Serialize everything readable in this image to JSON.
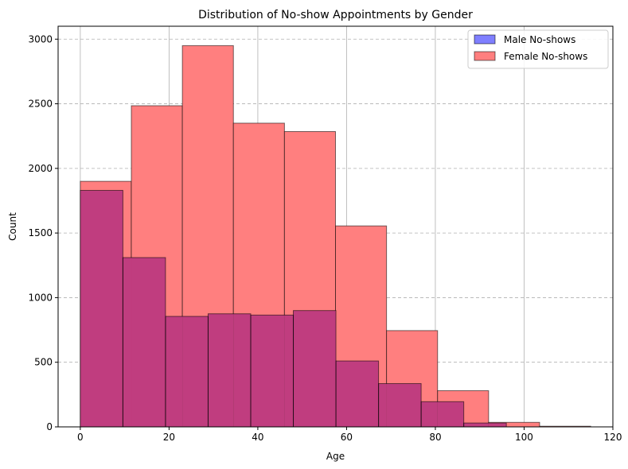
{
  "chart_data": {
    "type": "bar",
    "subtype": "histogram",
    "title": "Distribution of No-show Appointments by Gender",
    "xlabel": "Age",
    "ylabel": "Count",
    "xlim": [
      -5,
      120
    ],
    "ylim": [
      0,
      3100
    ],
    "xticks": [
      0,
      20,
      40,
      60,
      80,
      100,
      120
    ],
    "yticks": [
      0,
      500,
      1000,
      1500,
      2000,
      2500,
      3000
    ],
    "grid": {
      "x": "solid",
      "y": "dashed"
    },
    "legend_position": "top-right",
    "series": [
      {
        "name": "Male No-shows",
        "color": "#7f7fff",
        "bin_edges": [
          0,
          9.6,
          19.2,
          28.8,
          38.4,
          48.0,
          57.6,
          67.2,
          76.8,
          86.4,
          96.0
        ],
        "values": [
          1830,
          1310,
          855,
          875,
          865,
          900,
          510,
          335,
          195,
          30
        ]
      },
      {
        "name": "Female No-shows",
        "color": "#ff7f7f",
        "bin_edges": [
          0,
          11.5,
          23.0,
          34.5,
          46.0,
          57.5,
          69.0,
          80.5,
          92.0,
          103.5,
          115.0
        ],
        "values": [
          1900,
          2485,
          2950,
          2350,
          2285,
          1555,
          745,
          280,
          35,
          5
        ]
      }
    ],
    "overlap_color": "#c03d7f"
  }
}
